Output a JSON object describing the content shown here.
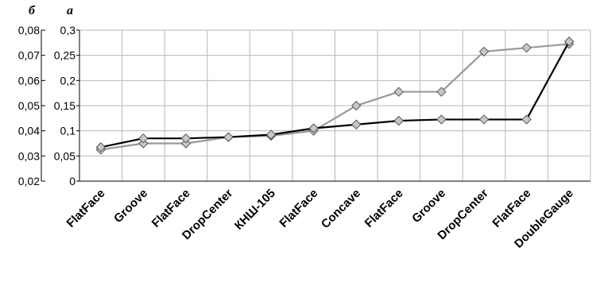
{
  "chart_data": {
    "type": "line",
    "categories": [
      "FlatFace",
      "Groove",
      "FlatFace",
      "DropCenter",
      "КНШ-105",
      "FlatFace",
      "Concave",
      "FlatFace",
      "Groove",
      "DropCenter",
      "FlatFace",
      "DoubleGauge"
    ],
    "left_axis": {
      "label": "б",
      "ylim": [
        0.02,
        0.08
      ],
      "ticks": [
        "0,02",
        "0,03",
        "0,04",
        "0,05",
        "0,06",
        "0,07",
        "0,08"
      ]
    },
    "right_axis": {
      "label": "а",
      "ylim": [
        0,
        0.3
      ],
      "ticks": [
        "0",
        "0,05",
        "0,1",
        "0,15",
        "0,2",
        "0,25",
        "0,3"
      ]
    },
    "series": [
      {
        "axis": "left",
        "color": "#000000",
        "marker": "diamond",
        "values": [
          0.0335,
          0.037,
          0.037,
          0.0375,
          0.0385,
          0.041,
          0.0425,
          0.044,
          0.0445,
          0.0445,
          0.0445,
          0.0755
        ]
      },
      {
        "axis": "left",
        "color": "#999999",
        "marker": "diamond",
        "values": [
          0.0325,
          0.035,
          0.035,
          0.0375,
          0.038,
          0.04,
          0.05,
          0.0555,
          0.0555,
          0.0715,
          0.073,
          0.0745
        ]
      }
    ],
    "grid": true,
    "legend": "none"
  }
}
